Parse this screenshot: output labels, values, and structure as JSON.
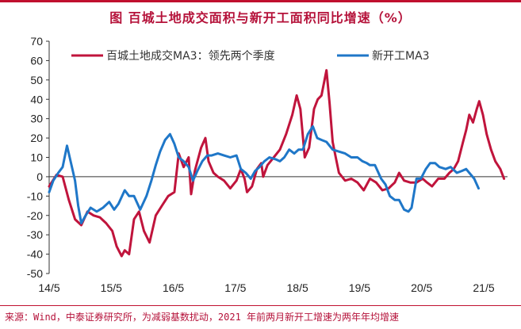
{
  "title": "图  百城土地成交面积与新开工面积同比增速（%）",
  "source": "来源：Wind，中泰证券研究所，为减弱基数扰动，2021 年前两月新开工增速为两年年均增速",
  "colors": {
    "series_a": "#c0143c",
    "series_b": "#1f77c8",
    "accent": "#c0102f"
  },
  "chart_data": {
    "type": "line",
    "ylim": [
      -50,
      70
    ],
    "yticks": [
      70,
      60,
      50,
      40,
      30,
      20,
      10,
      0,
      -10,
      -20,
      -30,
      -40,
      -50
    ],
    "xlim": [
      2014.333,
      2021.333
    ],
    "xticks": [
      {
        "label": "14/5",
        "x": 2014.333
      },
      {
        "label": "15/5",
        "x": 2015.333
      },
      {
        "label": "16/5",
        "x": 2016.333
      },
      {
        "label": "17/5",
        "x": 2017.333
      },
      {
        "label": "18/5",
        "x": 2018.333
      },
      {
        "label": "19/5",
        "x": 2019.333
      },
      {
        "label": "20/5",
        "x": 2020.333
      },
      {
        "label": "21/5",
        "x": 2021.333
      }
    ],
    "legend_position": "top",
    "series": [
      {
        "name": "百城土地成交MA3：领先两个季度",
        "points": [
          [
            2014.333,
            -5
          ],
          [
            2014.45,
            1
          ],
          [
            2014.55,
            0
          ],
          [
            2014.65,
            -12
          ],
          [
            2014.75,
            -22
          ],
          [
            2014.85,
            -25
          ],
          [
            2014.95,
            -18
          ],
          [
            2015.05,
            -20
          ],
          [
            2015.15,
            -21
          ],
          [
            2015.25,
            -24
          ],
          [
            2015.35,
            -28
          ],
          [
            2015.42,
            -36
          ],
          [
            2015.5,
            -41
          ],
          [
            2015.55,
            -38
          ],
          [
            2015.62,
            -40
          ],
          [
            2015.7,
            -22
          ],
          [
            2015.78,
            -18
          ],
          [
            2015.86,
            -28
          ],
          [
            2015.95,
            -34
          ],
          [
            2016.05,
            -20
          ],
          [
            2016.15,
            -15
          ],
          [
            2016.25,
            -10
          ],
          [
            2016.35,
            -8
          ],
          [
            2016.42,
            12
          ],
          [
            2016.5,
            5
          ],
          [
            2016.58,
            10
          ],
          [
            2016.62,
            -9
          ],
          [
            2016.68,
            3
          ],
          [
            2016.78,
            15
          ],
          [
            2016.85,
            20
          ],
          [
            2016.9,
            8
          ],
          [
            2016.98,
            2
          ],
          [
            2017.05,
            0
          ],
          [
            2017.15,
            -2
          ],
          [
            2017.25,
            -6
          ],
          [
            2017.35,
            -2
          ],
          [
            2017.42,
            4
          ],
          [
            2017.48,
            -1
          ],
          [
            2017.52,
            -8
          ],
          [
            2017.6,
            -5
          ],
          [
            2017.68,
            4
          ],
          [
            2017.75,
            7
          ],
          [
            2017.78,
            0
          ],
          [
            2017.85,
            6
          ],
          [
            2017.95,
            10
          ],
          [
            2018.05,
            14
          ],
          [
            2018.15,
            22
          ],
          [
            2018.25,
            32
          ],
          [
            2018.32,
            42
          ],
          [
            2018.38,
            35
          ],
          [
            2018.45,
            10
          ],
          [
            2018.52,
            15
          ],
          [
            2018.6,
            35
          ],
          [
            2018.66,
            40
          ],
          [
            2018.72,
            42
          ],
          [
            2018.8,
            55
          ],
          [
            2018.85,
            38
          ],
          [
            2018.9,
            18
          ],
          [
            2018.95,
            10
          ],
          [
            2019.0,
            2
          ],
          [
            2019.1,
            -2
          ],
          [
            2019.2,
            -1
          ],
          [
            2019.3,
            -3
          ],
          [
            2019.4,
            -7
          ],
          [
            2019.5,
            -1
          ],
          [
            2019.6,
            -3
          ],
          [
            2019.7,
            -7
          ],
          [
            2019.8,
            -6
          ],
          [
            2019.9,
            -3
          ],
          [
            2019.97,
            2
          ],
          [
            2020.05,
            -2
          ],
          [
            2020.15,
            -3
          ],
          [
            2020.25,
            -3
          ],
          [
            2020.35,
            -1
          ],
          [
            2020.42,
            -3
          ],
          [
            2020.5,
            -5
          ],
          [
            2020.6,
            -1
          ],
          [
            2020.7,
            -1
          ],
          [
            2020.78,
            2
          ],
          [
            2020.85,
            4
          ],
          [
            2020.92,
            8
          ],
          [
            2021.0,
            18
          ],
          [
            2021.05,
            24
          ],
          [
            2021.1,
            32
          ],
          [
            2021.16,
            28
          ],
          [
            2021.22,
            35
          ],
          [
            2021.26,
            39
          ],
          [
            2021.32,
            32
          ],
          [
            2021.38,
            22
          ],
          [
            2021.45,
            14
          ],
          [
            2021.52,
            8
          ],
          [
            2021.6,
            4
          ],
          [
            2021.66,
            -1
          ]
        ]
      },
      {
        "name": "新开工MA3",
        "points": [
          [
            2014.333,
            -8
          ],
          [
            2014.4,
            -2
          ],
          [
            2014.48,
            2
          ],
          [
            2014.55,
            5
          ],
          [
            2014.62,
            16
          ],
          [
            2014.7,
            5
          ],
          [
            2014.75,
            -2
          ],
          [
            2014.8,
            -15
          ],
          [
            2014.85,
            -24
          ],
          [
            2014.92,
            -20
          ],
          [
            2015.0,
            -16
          ],
          [
            2015.1,
            -18
          ],
          [
            2015.2,
            -16
          ],
          [
            2015.3,
            -13
          ],
          [
            2015.38,
            -17
          ],
          [
            2015.45,
            -14
          ],
          [
            2015.55,
            -7
          ],
          [
            2015.62,
            -10
          ],
          [
            2015.7,
            -10
          ],
          [
            2015.8,
            -17
          ],
          [
            2015.9,
            -10
          ],
          [
            2015.98,
            -2
          ],
          [
            2016.05,
            6
          ],
          [
            2016.12,
            13
          ],
          [
            2016.2,
            19
          ],
          [
            2016.28,
            22
          ],
          [
            2016.35,
            17
          ],
          [
            2016.42,
            10
          ],
          [
            2016.5,
            8
          ],
          [
            2016.58,
            5
          ],
          [
            2016.65,
            -2
          ],
          [
            2016.72,
            3
          ],
          [
            2016.8,
            8
          ],
          [
            2016.88,
            11
          ],
          [
            2016.95,
            11
          ],
          [
            2017.05,
            12
          ],
          [
            2017.15,
            11
          ],
          [
            2017.25,
            10
          ],
          [
            2017.35,
            11
          ],
          [
            2017.42,
            4
          ],
          [
            2017.5,
            2
          ],
          [
            2017.58,
            -1
          ],
          [
            2017.65,
            3
          ],
          [
            2017.72,
            5
          ],
          [
            2017.8,
            8
          ],
          [
            2017.88,
            10
          ],
          [
            2017.98,
            9
          ],
          [
            2018.05,
            8
          ],
          [
            2018.12,
            10
          ],
          [
            2018.2,
            14
          ],
          [
            2018.28,
            12
          ],
          [
            2018.35,
            14
          ],
          [
            2018.42,
            14
          ],
          [
            2018.5,
            22
          ],
          [
            2018.58,
            26
          ],
          [
            2018.65,
            20
          ],
          [
            2018.72,
            19
          ],
          [
            2018.8,
            18
          ],
          [
            2018.9,
            14
          ],
          [
            2019.0,
            13
          ],
          [
            2019.1,
            12
          ],
          [
            2019.2,
            10
          ],
          [
            2019.3,
            10
          ],
          [
            2019.38,
            8
          ],
          [
            2019.45,
            7
          ],
          [
            2019.5,
            6
          ],
          [
            2019.58,
            6
          ],
          [
            2019.68,
            -1
          ],
          [
            2019.75,
            -4
          ],
          [
            2019.82,
            -10
          ],
          [
            2019.9,
            -12
          ],
          [
            2019.97,
            -12
          ],
          [
            2020.05,
            -17
          ],
          [
            2020.12,
            -18
          ],
          [
            2020.17,
            -16
          ],
          [
            2020.25,
            -1
          ],
          [
            2020.32,
            -1
          ],
          [
            2020.4,
            4
          ],
          [
            2020.47,
            7
          ],
          [
            2020.55,
            7
          ],
          [
            2020.62,
            5
          ],
          [
            2020.72,
            4
          ],
          [
            2020.8,
            5
          ],
          [
            2020.9,
            2
          ],
          [
            2020.98,
            3
          ],
          [
            2021.05,
            4
          ],
          [
            2021.1,
            2
          ],
          [
            2021.18,
            -1
          ],
          [
            2021.25,
            -6
          ]
        ]
      }
    ]
  }
}
